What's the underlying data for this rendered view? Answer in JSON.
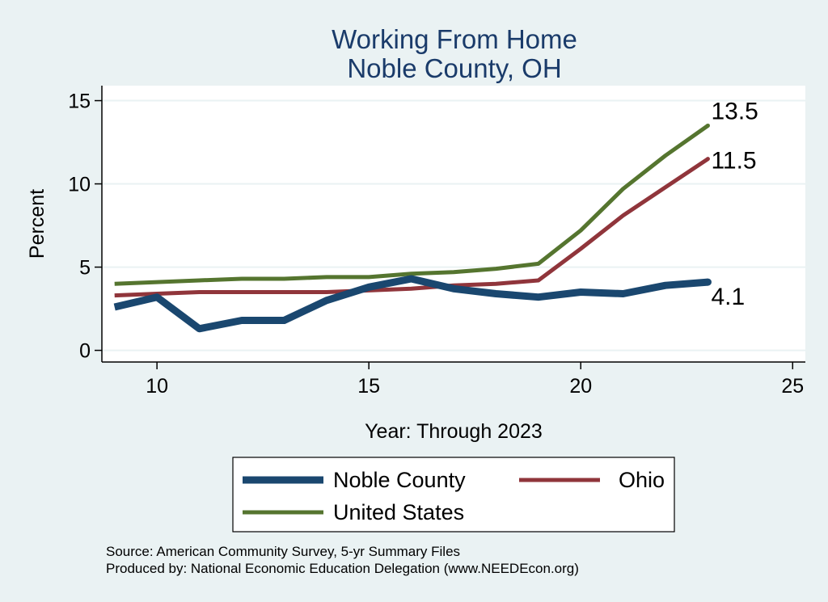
{
  "chart_data": {
    "type": "line",
    "title": "Working From Home",
    "subtitle": "Noble County, OH",
    "xlabel": "Year: Through 2023",
    "ylabel": "Percent",
    "xlim": [
      8.7,
      25.3
    ],
    "ylim": [
      -0.7,
      15.9
    ],
    "x_ticks": [
      10,
      15,
      20,
      25
    ],
    "y_ticks": [
      0,
      5,
      10,
      15
    ],
    "grid": true,
    "legend_position": "bottom",
    "x": [
      9,
      10,
      11,
      12,
      13,
      14,
      15,
      16,
      17,
      18,
      19,
      20,
      21,
      22,
      23
    ],
    "series": [
      {
        "name": "Noble County",
        "color": "#1a476f",
        "values": [
          2.6,
          3.2,
          1.3,
          1.8,
          1.8,
          3.0,
          3.8,
          4.3,
          3.7,
          3.4,
          3.2,
          3.5,
          3.4,
          3.9,
          4.1
        ],
        "end_label": "4.1"
      },
      {
        "name": "Ohio",
        "color": "#90353b",
        "values": [
          3.3,
          3.4,
          3.5,
          3.5,
          3.5,
          3.5,
          3.6,
          3.7,
          3.9,
          4.0,
          4.2,
          6.1,
          8.1,
          9.8,
          11.5
        ],
        "end_label": "11.5"
      },
      {
        "name": "United States",
        "color": "#55752f",
        "values": [
          4.0,
          4.1,
          4.2,
          4.3,
          4.3,
          4.4,
          4.4,
          4.6,
          4.7,
          4.9,
          5.2,
          7.2,
          9.7,
          11.7,
          13.5
        ],
        "end_label": "13.5"
      }
    ],
    "source_note": "Source: American Community Survey, 5-yr Summary Files",
    "produced_note": "Produced by: National Economic Education Delegation (www.NEEDEcon.org)"
  }
}
